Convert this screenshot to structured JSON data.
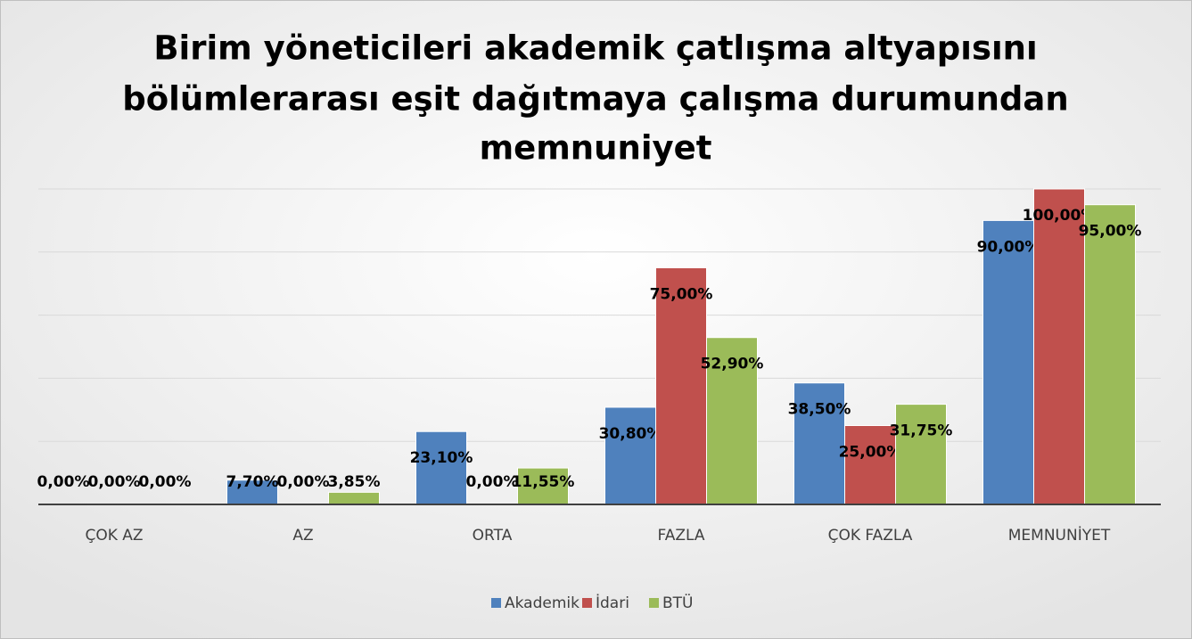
{
  "chart_data": {
    "type": "bar",
    "title": [
      "Birim yöneticileri akademik çatlışma altyapısını",
      "bölümlerarası eşit dağıtmaya çalışma durumundan",
      "memnuniyet"
    ],
    "categories": [
      "ÇOK AZ",
      "AZ",
      "ORTA",
      "FAZLA",
      "ÇOK FAZLA",
      "MEMNUNİYET"
    ],
    "series": [
      {
        "name": "Akademik",
        "color": "#4f81bd",
        "values": [
          0,
          7.7,
          23.1,
          30.8,
          38.5,
          90
        ],
        "value_labels": [
          "0,00%",
          "7,70%",
          "23,10%",
          "30,80%",
          "38,50%",
          "90,00%"
        ]
      },
      {
        "name": "İdari",
        "color": "#c0504d",
        "values": [
          0,
          0,
          0,
          75,
          25,
          100
        ],
        "value_labels": [
          "0,00%",
          "0,00%",
          "0,00%",
          "75,00%",
          "25,00%",
          "100,00%"
        ]
      },
      {
        "name": "BTÜ",
        "color": "#9bbb59",
        "values": [
          0,
          3.85,
          11.55,
          52.9,
          31.75,
          95
        ],
        "value_labels": [
          "0,00%",
          "3,85%",
          "11,55%",
          "52,90%",
          "31,75%",
          "95,00%"
        ]
      }
    ],
    "ylim": [
      0,
      100
    ],
    "yticks": [
      0,
      20,
      40,
      60,
      80,
      100
    ],
    "grid": true,
    "legend": "bottom"
  }
}
